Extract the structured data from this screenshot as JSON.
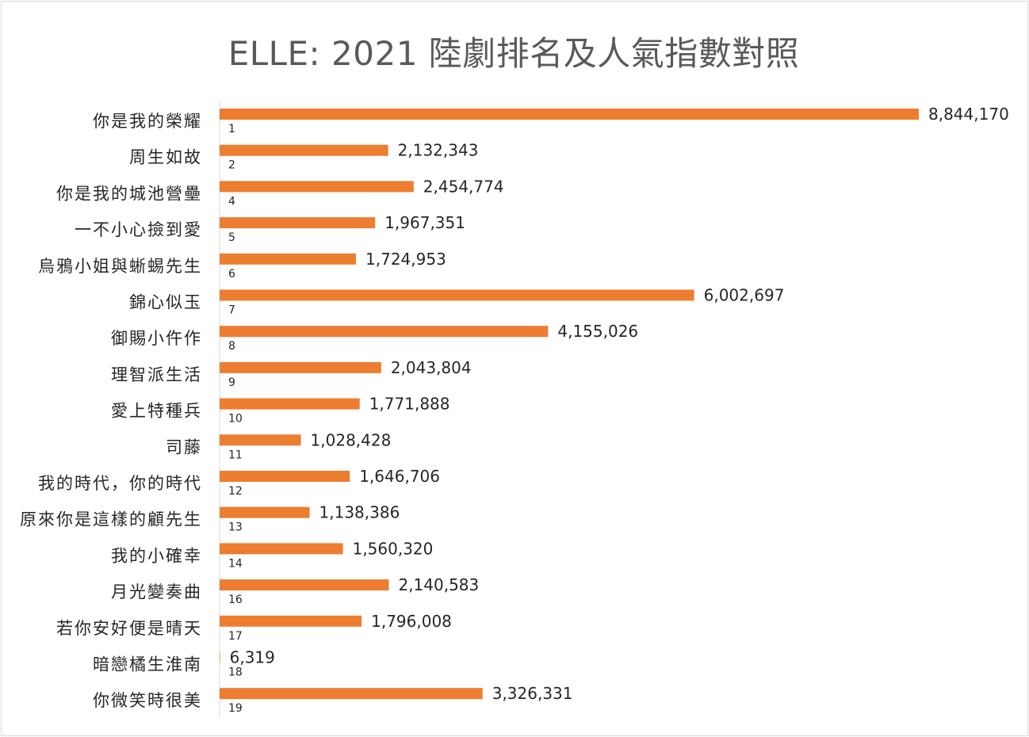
{
  "colors": {
    "bar": "#ED7D31",
    "axis": "#d9d9d9",
    "title": "#595959",
    "text": "#262626"
  },
  "chart_data": {
    "type": "bar",
    "orientation": "horizontal",
    "title": "ELLE: 2021 陸劇排名及人氣指數對照",
    "xlabel": "",
    "ylabel": "",
    "grid": false,
    "legend": "none",
    "xlim": [
      0,
      8844170
    ],
    "categories": [
      "你是我的榮耀",
      "周生如故",
      "你是我的城池營壘",
      "一不小心撿到愛",
      "烏鴉小姐與蜥蜴先生",
      "錦心似玉",
      "御賜小仵作",
      "理智派生活",
      "愛上特種兵",
      "司藤",
      "我的時代，你的時代",
      "原來你是這樣的顧先生",
      "我的小確幸",
      "月光變奏曲",
      "若你安好便是晴天",
      "暗戀橘生淮南",
      "你微笑時很美"
    ],
    "ranks": [
      "1",
      "2",
      "4",
      "5",
      "6",
      "7",
      "8",
      "9",
      "10",
      "11",
      "12",
      "13",
      "14",
      "16",
      "17",
      "18",
      "19"
    ],
    "values": [
      8844170,
      2132343,
      2454774,
      1967351,
      1724953,
      6002697,
      4155026,
      2043804,
      1771888,
      1028428,
      1646706,
      1138386,
      1560320,
      2140583,
      1796008,
      6319,
      3326331
    ],
    "value_labels": [
      "8,844,170",
      "2,132,343",
      "2,454,774",
      "1,967,351",
      "1,724,953",
      "6,002,697",
      "4,155,026",
      "2,043,804",
      "1,771,888",
      "1,028,428",
      "1,646,706",
      "1,138,386",
      "1,560,320",
      "2,140,583",
      "1,796,008",
      "6,319",
      "3,326,331"
    ]
  }
}
